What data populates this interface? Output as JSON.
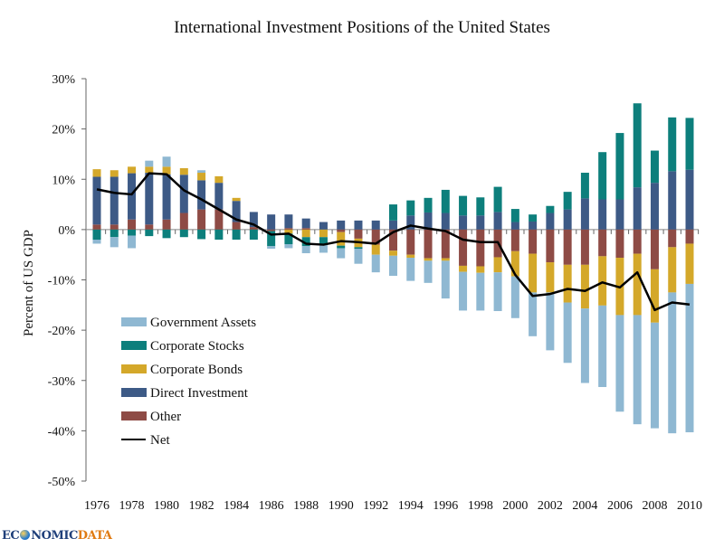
{
  "chart_data": {
    "type": "bar",
    "stacked": true,
    "title": "International Investment Positions of the United States",
    "xlabel": "",
    "ylabel": "Percent of US GDP",
    "ylim": [
      -50,
      30
    ],
    "yticks": [
      30,
      20,
      10,
      0,
      -10,
      -20,
      -30,
      -40,
      -50
    ],
    "ytick_labels": [
      "30%",
      "20%",
      "10%",
      "0%",
      "-10%",
      "-20%",
      "-30%",
      "-40%",
      "-50%"
    ],
    "xtick_labels": [
      "1976",
      "1978",
      "1980",
      "1982",
      "1984",
      "1986",
      "1988",
      "1990",
      "1992",
      "1994",
      "1996",
      "1998",
      "2000",
      "2002",
      "2004",
      "2006",
      "2008",
      "2010"
    ],
    "grid": false,
    "legend_placement": "bottom-left",
    "categories": [
      1976,
      1977,
      1978,
      1979,
      1980,
      1981,
      1982,
      1983,
      1984,
      1985,
      1986,
      1987,
      1988,
      1989,
      1990,
      1991,
      1992,
      1993,
      1994,
      1995,
      1996,
      1997,
      1998,
      1999,
      2000,
      2001,
      2002,
      2003,
      2004,
      2005,
      2006,
      2007,
      2008,
      2009,
      2010
    ],
    "series": [
      {
        "name": "Other",
        "color": "#8e4b45",
        "values": [
          1,
          1,
          2,
          1,
          2,
          3.3,
          4,
          4,
          1.5,
          0.5,
          -0.3,
          0.3,
          0.3,
          0,
          -0.5,
          -1.8,
          -3,
          -4.2,
          -5,
          -5.7,
          -5.7,
          -7.2,
          -7.3,
          -5.5,
          -4.3,
          -4.8,
          -6.5,
          -7,
          -7,
          -5.3,
          -5.6,
          -4.8,
          -7.9,
          -3.5,
          -2.8
        ]
      },
      {
        "name": "Direct Investment",
        "color": "#3d5a86",
        "values": [
          9.5,
          9.5,
          9.2,
          10.3,
          9,
          7.6,
          5.8,
          5.3,
          4.2,
          3,
          3,
          2.7,
          1.9,
          1.5,
          1.8,
          1.8,
          1.8,
          1.8,
          2.8,
          3.4,
          3.3,
          2.8,
          2.8,
          3.5,
          1.5,
          1.6,
          3.3,
          4,
          6.2,
          6,
          6,
          8.4,
          9.3,
          11.6,
          11.9
        ]
      },
      {
        "name": "Corporate Bonds",
        "color": "#d4a82a",
        "values": [
          1.5,
          1.3,
          1.3,
          1.2,
          1.5,
          1.3,
          1.5,
          1.3,
          0.6,
          0,
          0,
          -0.8,
          -1.5,
          -1.5,
          -2.7,
          -1.7,
          -2,
          -1,
          -0.6,
          -0.5,
          -0.5,
          -1.2,
          -1.3,
          -3,
          -5,
          -7.7,
          -6,
          -7.5,
          -8.7,
          -9.8,
          -11.4,
          -12.2,
          -10.6,
          -9,
          -8
        ]
      },
      {
        "name": "Corporate Stocks",
        "color": "#0d7f7c",
        "values": [
          -2,
          -1.5,
          -1.2,
          -1.3,
          -1.7,
          -1.5,
          -1.9,
          -2,
          -2,
          -2,
          -3,
          -2.1,
          -1.8,
          -1.6,
          -0.5,
          -0.3,
          0,
          3.2,
          3,
          2.9,
          4.6,
          3.9,
          3.6,
          5,
          2.6,
          1.4,
          1.4,
          3.5,
          5.1,
          9.4,
          13.2,
          16.7,
          6.4,
          10.7,
          10.3
        ]
      },
      {
        "name": "Government Assets",
        "color": "#8fb8d2",
        "values": [
          -0.8,
          -2,
          -2.5,
          1.2,
          2,
          0,
          0.5,
          0,
          0,
          0,
          -0.5,
          -0.8,
          -1.4,
          -1.5,
          -2,
          -3,
          -3.5,
          -4,
          -4.6,
          -4.4,
          -7.5,
          -7.7,
          -7.5,
          -7.7,
          -8.3,
          -8.7,
          -11.5,
          -12,
          -14.8,
          -16.2,
          -19.2,
          -21.7,
          -21,
          -28,
          -29.5
        ]
      }
    ],
    "line_series": {
      "name": "Net",
      "color": "#000000",
      "values": [
        8,
        7.3,
        7,
        11.2,
        11,
        7.8,
        6,
        4,
        2,
        1,
        -1,
        -0.8,
        -2.8,
        -3,
        -2.3,
        -2.5,
        -2.8,
        -0.5,
        0.8,
        0.2,
        -0.3,
        -2,
        -2.5,
        -2.5,
        -9,
        -13.2,
        -12.8,
        -11.8,
        -12.2,
        -10.5,
        -11.5,
        -8.5,
        -16,
        -14.5,
        -14.9
      ]
    },
    "legend": [
      "Government Assets",
      "Corporate Stocks",
      "Corporate Bonds",
      "Direct Investment",
      "Other",
      "Net"
    ]
  },
  "branding": {
    "logo_prefix": "EC",
    "logo_middle": "NOMIC",
    "logo_suffix": "DATA"
  }
}
